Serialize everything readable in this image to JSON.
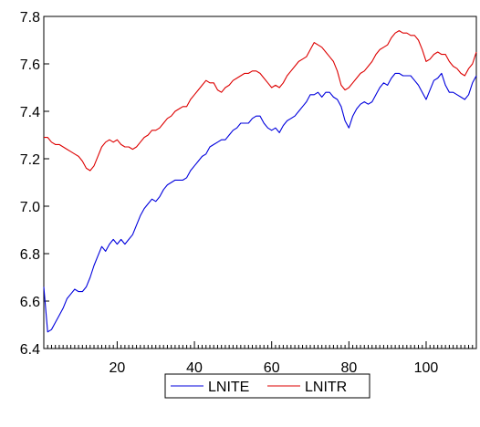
{
  "chart_data": {
    "type": "line",
    "title": "",
    "xlabel": "",
    "ylabel": "",
    "xlim": [
      1,
      113
    ],
    "ylim": [
      6.4,
      7.8
    ],
    "x_ticks": [
      20,
      40,
      60,
      80,
      100
    ],
    "y_ticks": [
      6.4,
      6.6,
      6.8,
      7.0,
      7.2,
      7.4,
      7.6,
      7.8
    ],
    "y_tick_labels": [
      "6.4",
      "6.6",
      "6.8",
      "7.0",
      "7.2",
      "7.4",
      "7.6",
      "7.8"
    ],
    "x_tick_labels": [
      "20",
      "40",
      "60",
      "80",
      "100"
    ],
    "grid": false,
    "legend_position": "bottom-center",
    "series": [
      {
        "name": "LNITE",
        "color": "#0000dd",
        "values": [
          6.66,
          6.47,
          6.48,
          6.51,
          6.54,
          6.57,
          6.61,
          6.63,
          6.65,
          6.64,
          6.64,
          6.66,
          6.7,
          6.75,
          6.79,
          6.83,
          6.81,
          6.84,
          6.86,
          6.84,
          6.86,
          6.84,
          6.86,
          6.88,
          6.92,
          6.96,
          6.99,
          7.01,
          7.03,
          7.02,
          7.04,
          7.07,
          7.09,
          7.1,
          7.11,
          7.11,
          7.11,
          7.12,
          7.15,
          7.17,
          7.19,
          7.21,
          7.22,
          7.25,
          7.26,
          7.27,
          7.28,
          7.28,
          7.3,
          7.32,
          7.33,
          7.35,
          7.35,
          7.35,
          7.37,
          7.38,
          7.38,
          7.35,
          7.33,
          7.32,
          7.33,
          7.31,
          7.34,
          7.36,
          7.37,
          7.38,
          7.4,
          7.42,
          7.44,
          7.47,
          7.47,
          7.48,
          7.46,
          7.48,
          7.48,
          7.46,
          7.45,
          7.42,
          7.36,
          7.33,
          7.38,
          7.41,
          7.43,
          7.44,
          7.43,
          7.44,
          7.47,
          7.5,
          7.52,
          7.51,
          7.54,
          7.56,
          7.56,
          7.55,
          7.55,
          7.55,
          7.53,
          7.51,
          7.48,
          7.45,
          7.49,
          7.53,
          7.54,
          7.56,
          7.51,
          7.48,
          7.48,
          7.47,
          7.46,
          7.45,
          7.47,
          7.52,
          7.55
        ]
      },
      {
        "name": "LNITR",
        "color": "#dd0000",
        "values": [
          7.29,
          7.29,
          7.27,
          7.26,
          7.26,
          7.25,
          7.24,
          7.23,
          7.22,
          7.21,
          7.19,
          7.16,
          7.15,
          7.17,
          7.21,
          7.25,
          7.27,
          7.28,
          7.27,
          7.28,
          7.26,
          7.25,
          7.25,
          7.24,
          7.25,
          7.27,
          7.29,
          7.3,
          7.32,
          7.32,
          7.33,
          7.35,
          7.37,
          7.38,
          7.4,
          7.41,
          7.42,
          7.42,
          7.45,
          7.47,
          7.49,
          7.51,
          7.53,
          7.52,
          7.52,
          7.49,
          7.48,
          7.5,
          7.51,
          7.53,
          7.54,
          7.55,
          7.56,
          7.56,
          7.57,
          7.57,
          7.56,
          7.54,
          7.52,
          7.5,
          7.51,
          7.5,
          7.52,
          7.55,
          7.57,
          7.59,
          7.61,
          7.62,
          7.63,
          7.66,
          7.69,
          7.68,
          7.67,
          7.65,
          7.63,
          7.61,
          7.57,
          7.51,
          7.49,
          7.5,
          7.52,
          7.54,
          7.56,
          7.57,
          7.59,
          7.61,
          7.64,
          7.66,
          7.67,
          7.68,
          7.71,
          7.73,
          7.74,
          7.73,
          7.73,
          7.72,
          7.72,
          7.7,
          7.66,
          7.61,
          7.62,
          7.64,
          7.65,
          7.64,
          7.64,
          7.61,
          7.59,
          7.58,
          7.56,
          7.55,
          7.58,
          7.6,
          7.65
        ]
      }
    ]
  }
}
